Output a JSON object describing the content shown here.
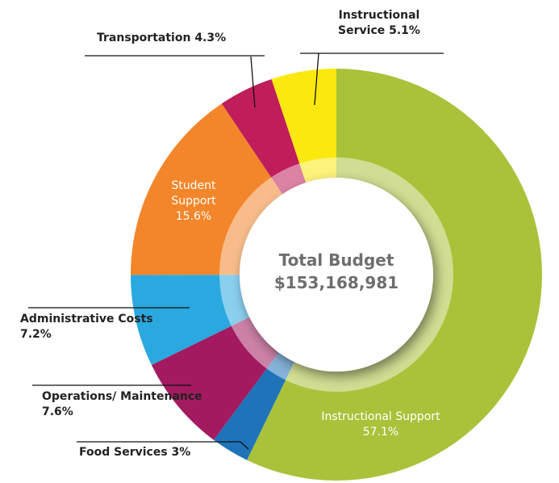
{
  "chart_data": {
    "type": "donut",
    "center_title": "Total Budget",
    "center_value": "$153,168,981",
    "categories": [
      "Instructional Support",
      "Food Services",
      "Operations/ Maintenance",
      "Administrative Costs",
      "Student Support",
      "Transportation",
      "Instructional Service"
    ],
    "values": [
      57.1,
      3,
      7.6,
      7.2,
      15.6,
      4.3,
      5.1
    ],
    "value_labels": [
      "57.1%",
      "3%",
      "7.6%",
      "7.2%",
      "15.6%",
      "4.3%",
      "5.1%"
    ],
    "colors": [
      "#a9c23a",
      "#1f73b9",
      "#a31a60",
      "#2aa8e0",
      "#f3862a",
      "#c01d5b",
      "#fbe80e"
    ]
  }
}
